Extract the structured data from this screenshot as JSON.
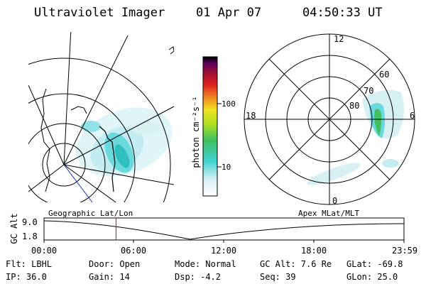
{
  "header": {
    "instrument": "Ultraviolet Imager",
    "date": "01 Apr 07",
    "time": "04:50:33 UT"
  },
  "colorbar": {
    "unit_label": "photon cm⁻²s⁻¹",
    "ticks": [
      "100",
      "10"
    ]
  },
  "polar_plot": {
    "mlt_labels": [
      "12",
      "18",
      "6",
      "0"
    ],
    "mlat_labels": [
      "60",
      "70",
      "80"
    ]
  },
  "projection_labels": {
    "left": "Geographic Lat/Lon",
    "right": "Apex MLat/MLT"
  },
  "timeline": {
    "y_axis_label": "GC Alt",
    "y_ticks": [
      "9.0",
      "1.8"
    ],
    "x_ticks": [
      "00:00",
      "06:00",
      "12:00",
      "18:00",
      "23:59"
    ],
    "current_time_fraction": 0.2
  },
  "status": {
    "flt": "Flt: LBHL",
    "ip": "IP: 36.0",
    "door": "Door: Open",
    "gain": "Gain: 14",
    "mode": "Mode: Normal",
    "dsp": "Dsp:  -4.2",
    "gc_alt": "GC Alt: 7.6 Re",
    "seq": "Seq: 39",
    "glat": "GLat: -69.8",
    "glon": "GLon:  25.0"
  }
}
